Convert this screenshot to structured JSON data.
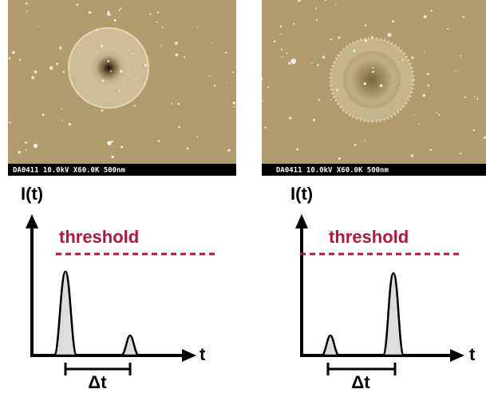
{
  "panels": [
    {
      "image_caption": "DA0411 10.0kV X60.0K 500nm",
      "y_label": "I(t)",
      "threshold_label": "threshold",
      "x_label": "t",
      "interval_label": "Δt"
    },
    {
      "image_caption": "DA0411 10.0kV X60.0K 500nm",
      "y_label": "I(t)",
      "threshold_label": "threshold",
      "x_label": "t",
      "interval_label": "Δt"
    }
  ]
}
